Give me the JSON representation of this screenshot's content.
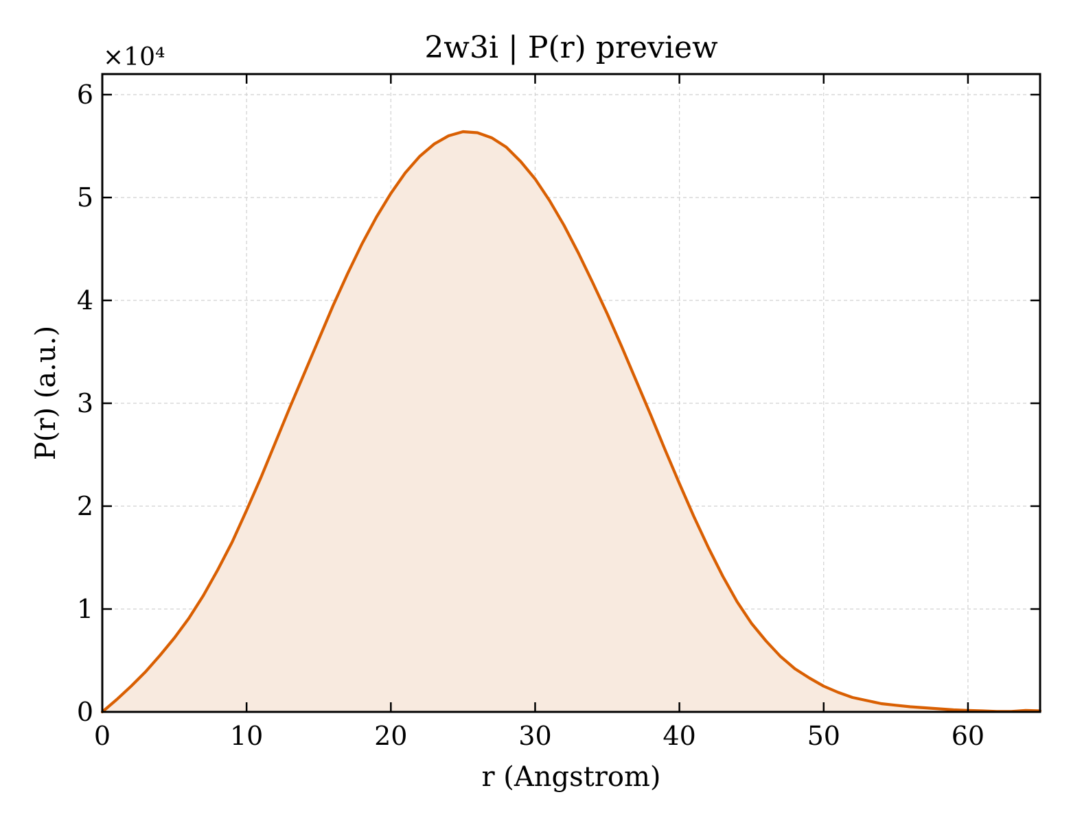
{
  "chart_data": {
    "type": "area",
    "title": "2w3i | P(r) preview",
    "xlabel": "r (Angstrom)",
    "ylabel": "P(r) (a.u.)",
    "y_multiplier_label": "×10⁴",
    "xlim": [
      0,
      65
    ],
    "ylim": [
      0,
      6.2
    ],
    "y_unit_multiplier": 10000,
    "x_ticks": [
      0,
      10,
      20,
      30,
      40,
      50,
      60
    ],
    "x_tick_labels": [
      "0",
      "10",
      "20",
      "30",
      "40",
      "50",
      "60"
    ],
    "y_ticks": [
      0,
      1,
      2,
      3,
      4,
      5,
      6
    ],
    "y_tick_labels": [
      "0",
      "1",
      "2",
      "3",
      "4",
      "5",
      "6"
    ],
    "grid": true,
    "legend": "none",
    "colors": {
      "line": "#d95f02",
      "fill": "#f8eadf",
      "grid": "#d0d0d0",
      "axis": "#000000"
    },
    "series": [
      {
        "x": [
          0,
          1,
          2,
          3,
          4,
          5,
          6,
          7,
          8,
          9,
          10,
          11,
          12,
          13,
          14,
          15,
          16,
          17,
          18,
          19,
          20,
          21,
          22,
          23,
          24,
          25,
          26,
          27,
          28,
          29,
          30,
          31,
          32,
          33,
          34,
          35,
          36,
          37,
          38,
          39,
          40,
          41,
          42,
          43,
          44,
          45,
          46,
          47,
          48,
          49,
          50,
          51,
          52,
          53,
          54,
          55,
          56,
          57,
          58,
          59,
          60,
          61,
          62,
          63,
          64,
          65
        ],
        "y": [
          0,
          0.12,
          0.25,
          0.39,
          0.55,
          0.72,
          0.91,
          1.13,
          1.38,
          1.65,
          1.96,
          2.28,
          2.62,
          2.96,
          3.29,
          3.62,
          3.95,
          4.26,
          4.55,
          4.81,
          5.04,
          5.24,
          5.4,
          5.52,
          5.6,
          5.64,
          5.63,
          5.58,
          5.49,
          5.35,
          5.18,
          4.97,
          4.73,
          4.46,
          4.17,
          3.87,
          3.55,
          3.22,
          2.89,
          2.55,
          2.22,
          1.9,
          1.6,
          1.32,
          1.07,
          0.86,
          0.69,
          0.54,
          0.42,
          0.33,
          0.25,
          0.19,
          0.14,
          0.11,
          0.08,
          0.065,
          0.05,
          0.04,
          0.03,
          0.02,
          0.015,
          0.01,
          0.005,
          0.005,
          0.015,
          0.01
        ]
      }
    ]
  }
}
